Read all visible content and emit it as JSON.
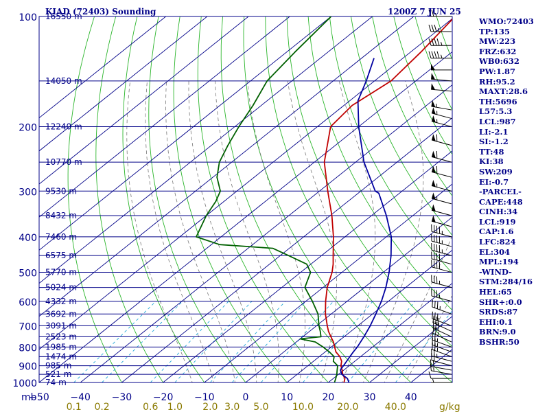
{
  "header": {
    "station": "KIAD (72403) Sounding",
    "time": "1200Z  7 JUN 25"
  },
  "indices": [
    "WMO:72403",
    "TP:135",
    "MW:223",
    "FRZ:632",
    "WB0:632",
    "PW:1.87",
    "RH:95.2",
    "MAXT:28.6",
    "TH:5696",
    "L57:5.3",
    "LCL:987",
    "LI:-2.1",
    "SI:-1.2",
    "TT:48",
    "KI:38",
    "SW:209",
    "EI:-0.7",
    "-PARCEL-",
    "CAPE:448",
    "CINH:34",
    "LCL:919",
    "CAP:1.6",
    "LFC:824",
    "EL:304",
    "MPL:194",
    "-WIND-",
    "STM:284/16",
    "HEL:65",
    "SHR+:0.0",
    "SRDS:87",
    "EHI:0.1",
    "BRN:9.0",
    "BSHR:50"
  ],
  "chart_data": {
    "type": "skew-t log-p sounding",
    "title": "KIAD (72403) Sounding",
    "subtitle": "1200Z  7 JUN 25",
    "x_axis_unit": "mb",
    "mixing_ratio_unit": "g/kg",
    "xlim": [
      -50,
      50
    ],
    "ylim_mb": [
      1000,
      100
    ],
    "pressure_ticks": [
      1000,
      900,
      800,
      700,
      600,
      500,
      400,
      300,
      200,
      100
    ],
    "temperature_ticks": [
      -50,
      -40,
      -30,
      -20,
      -10,
      0,
      10,
      20,
      30,
      40
    ],
    "mixing_ratio_ticks": [
      "0.1",
      "0.2",
      "0.6",
      "1.0",
      "2.0",
      "3.0",
      "5.0",
      "10.0",
      "20.0",
      "40.0"
    ],
    "height_labels": [
      {
        "p": 100,
        "label": "16550 m"
      },
      {
        "p": 150,
        "label": "14050 m"
      },
      {
        "p": 200,
        "label": "12240 m"
      },
      {
        "p": 250,
        "label": "10770 m"
      },
      {
        "p": 300,
        "label": "9530 m"
      },
      {
        "p": 350,
        "label": "8432 m"
      },
      {
        "p": 400,
        "label": "7460 m"
      },
      {
        "p": 450,
        "label": "6575 m"
      },
      {
        "p": 500,
        "label": "5770 m"
      },
      {
        "p": 550,
        "label": "5024 m"
      },
      {
        "p": 600,
        "label": "4332 m"
      },
      {
        "p": 650,
        "label": "3692 m"
      },
      {
        "p": 700,
        "label": "3091 m"
      },
      {
        "p": 750,
        "label": "2523 m"
      },
      {
        "p": 800,
        "label": "1985 m"
      },
      {
        "p": 850,
        "label": "1474 m"
      },
      {
        "p": 900,
        "label": "985 m"
      },
      {
        "p": 950,
        "label": "521 m"
      },
      {
        "p": 1000,
        "label": "74 m"
      }
    ],
    "series": [
      {
        "color": "#c00000",
        "points": [
          [
            1000,
            23.8
          ],
          [
            975,
            22.8
          ],
          [
            950,
            21.0
          ],
          [
            925,
            19.6
          ],
          [
            900,
            18.0
          ],
          [
            875,
            16.8
          ],
          [
            850,
            15.0
          ],
          [
            825,
            12.6
          ],
          [
            800,
            10.8
          ],
          [
            775,
            9.0
          ],
          [
            750,
            6.8
          ],
          [
            725,
            4.6
          ],
          [
            700,
            2.6
          ],
          [
            650,
            -1.4
          ],
          [
            600,
            -5.2
          ],
          [
            550,
            -9.0
          ],
          [
            500,
            -12.4
          ],
          [
            475,
            -14.6
          ],
          [
            450,
            -17.2
          ],
          [
            400,
            -22.8
          ],
          [
            350,
            -29.6
          ],
          [
            300,
            -38.0
          ],
          [
            250,
            -47.6
          ],
          [
            200,
            -56.8
          ],
          [
            175,
            -58.0
          ],
          [
            150,
            -56.0
          ],
          [
            125,
            -57.5
          ],
          [
            100,
            -60.0
          ]
        ]
      },
      {
        "color": "#006000",
        "points": [
          [
            1000,
            21.5
          ],
          [
            975,
            20.6
          ],
          [
            950,
            19.6
          ],
          [
            925,
            18.4
          ],
          [
            900,
            17.2
          ],
          [
            875,
            14.8
          ],
          [
            850,
            13.6
          ],
          [
            825,
            11.0
          ],
          [
            800,
            8.0
          ],
          [
            775,
            4.6
          ],
          [
            760,
            0.0
          ],
          [
            750,
            4.4
          ],
          [
            725,
            2.6
          ],
          [
            700,
            0.6
          ],
          [
            650,
            -3.2
          ],
          [
            600,
            -8.4
          ],
          [
            550,
            -14.4
          ],
          [
            500,
            -17.6
          ],
          [
            475,
            -21.0
          ],
          [
            450,
            -28.0
          ],
          [
            430,
            -34.0
          ],
          [
            420,
            -48.0
          ],
          [
            400,
            -56.0
          ],
          [
            350,
            -60.0
          ],
          [
            320,
            -62.0
          ],
          [
            300,
            -64.0
          ],
          [
            275,
            -69.0
          ],
          [
            250,
            -73.0
          ],
          [
            225,
            -76.0
          ],
          [
            200,
            -79.0
          ],
          [
            175,
            -82.0
          ],
          [
            150,
            -86.0
          ],
          [
            125,
            -88.0
          ],
          [
            100,
            -90.0
          ]
        ]
      },
      {
        "color": "#0000a0",
        "points": [
          [
            1000,
            25.0
          ],
          [
            975,
            23.4
          ],
          [
            950,
            20.8
          ],
          [
            925,
            19.2
          ],
          [
            919,
            19.0
          ],
          [
            900,
            18.6
          ],
          [
            850,
            17.4
          ],
          [
            824,
            16.8
          ],
          [
            800,
            16.3
          ],
          [
            750,
            14.8
          ],
          [
            700,
            13.0
          ],
          [
            650,
            10.8
          ],
          [
            600,
            8.3
          ],
          [
            550,
            5.2
          ],
          [
            500,
            1.4
          ],
          [
            450,
            -3.2
          ],
          [
            400,
            -8.8
          ],
          [
            350,
            -16.4
          ],
          [
            304,
            -25.0
          ],
          [
            300,
            -26.5
          ],
          [
            250,
            -38.0
          ],
          [
            200,
            -50.0
          ],
          [
            170,
            -58.0
          ],
          [
            150,
            -62.0
          ],
          [
            130,
            -67.0
          ]
        ]
      }
    ],
    "wind_barbs": [
      {
        "p": 1000,
        "dir": 270,
        "kt": 5
      },
      {
        "p": 975,
        "dir": 270,
        "kt": 10
      },
      {
        "p": 950,
        "dir": 280,
        "kt": 15
      },
      {
        "p": 925,
        "dir": 280,
        "kt": 20
      },
      {
        "p": 900,
        "dir": 285,
        "kt": 20
      },
      {
        "p": 875,
        "dir": 285,
        "kt": 25
      },
      {
        "p": 850,
        "dir": 290,
        "kt": 25
      },
      {
        "p": 825,
        "dir": 290,
        "kt": 25
      },
      {
        "p": 800,
        "dir": 290,
        "kt": 25
      },
      {
        "p": 775,
        "dir": 295,
        "kt": 25
      },
      {
        "p": 750,
        "dir": 295,
        "kt": 30
      },
      {
        "p": 725,
        "dir": 295,
        "kt": 30
      },
      {
        "p": 700,
        "dir": 290,
        "kt": 30
      },
      {
        "p": 650,
        "dir": 290,
        "kt": 35
      },
      {
        "p": 600,
        "dir": 285,
        "kt": 35
      },
      {
        "p": 550,
        "dir": 285,
        "kt": 35
      },
      {
        "p": 500,
        "dir": 285,
        "kt": 40
      },
      {
        "p": 475,
        "dir": 285,
        "kt": 40
      },
      {
        "p": 450,
        "dir": 285,
        "kt": 45
      },
      {
        "p": 425,
        "dir": 285,
        "kt": 45
      },
      {
        "p": 400,
        "dir": 285,
        "kt": 45
      },
      {
        "p": 375,
        "dir": 285,
        "kt": 50
      },
      {
        "p": 350,
        "dir": 285,
        "kt": 50
      },
      {
        "p": 325,
        "dir": 285,
        "kt": 55
      },
      {
        "p": 300,
        "dir": 285,
        "kt": 55
      },
      {
        "p": 275,
        "dir": 285,
        "kt": 60
      },
      {
        "p": 250,
        "dir": 285,
        "kt": 60
      },
      {
        "p": 225,
        "dir": 285,
        "kt": 60
      },
      {
        "p": 200,
        "dir": 285,
        "kt": 55
      },
      {
        "p": 190,
        "dir": 285,
        "kt": 55
      },
      {
        "p": 180,
        "dir": 280,
        "kt": 55
      },
      {
        "p": 160,
        "dir": 275,
        "kt": 50
      },
      {
        "p": 150,
        "dir": 275,
        "kt": 50
      },
      {
        "p": 140,
        "dir": 270,
        "kt": 50
      },
      {
        "p": 130,
        "dir": 270,
        "kt": 45
      },
      {
        "p": 120,
        "dir": 270,
        "kt": 45
      },
      {
        "p": 110,
        "dir": 270,
        "kt": 35
      },
      {
        "p": 100,
        "dir": 270,
        "kt": 25
      }
    ]
  }
}
